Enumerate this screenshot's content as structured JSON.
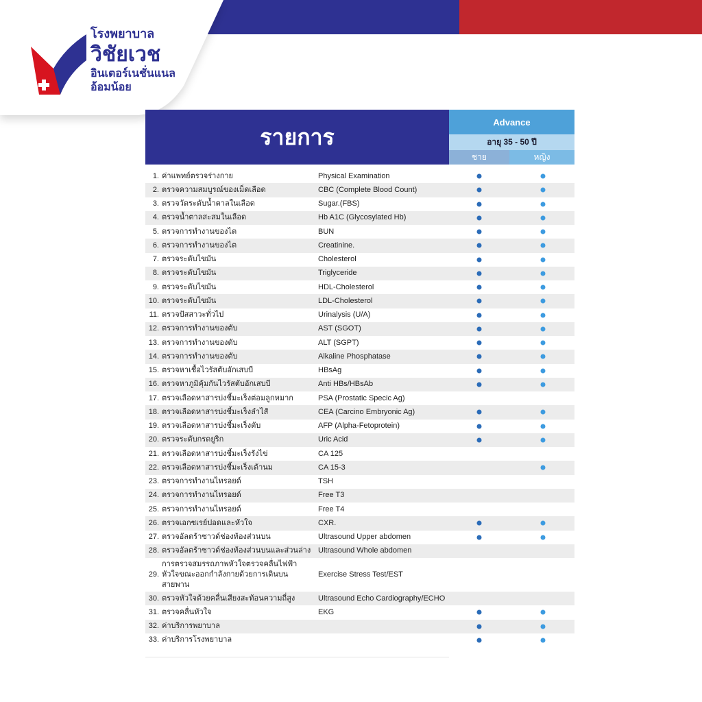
{
  "header": {
    "logo": {
      "line1": "โรงพยาบาล",
      "line2": "วิชัยเวช",
      "line3": "อินเตอร์เนชั่นแนล",
      "line4": "อ้อมน้อย"
    },
    "list_title": "รายการ",
    "package": "Advance",
    "age_range": "อายุ 35 - 50 ปี",
    "male": "ชาย",
    "female": "หญิง"
  },
  "colors": {
    "brand_blue": "#2e3192",
    "brand_red": "#c1272d",
    "dot_male": "#2b6cb8",
    "dot_female": "#3d9be0"
  },
  "rows": [
    {
      "n": "1.",
      "th": "ค่าแพทย์ตรวจร่างกาย",
      "en": "Physical Examination",
      "m": true,
      "f": true
    },
    {
      "n": "2.",
      "th": "ตรวจความสมบูรณ์ของเม็ดเลือด",
      "en": "CBC (Complete Blood Count)",
      "m": true,
      "f": true
    },
    {
      "n": "3.",
      "th": "ตรวจวัดระดับน้ำตาลในเลือด",
      "en": "Sugar.(FBS)",
      "m": true,
      "f": true
    },
    {
      "n": "4.",
      "th": "ตรวจน้ำตาลสะสมในเลือด",
      "en": "Hb A1C (Glycosylated Hb)",
      "m": true,
      "f": true
    },
    {
      "n": "5.",
      "th": "ตรวจการทำงานของไต",
      "en": "BUN",
      "m": true,
      "f": true
    },
    {
      "n": "6.",
      "th": "ตรวจการทำงานของไต",
      "en": "Creatinine.",
      "m": true,
      "f": true
    },
    {
      "n": "7.",
      "th": "ตรวจระดับไขมัน",
      "en": "Cholesterol",
      "m": true,
      "f": true
    },
    {
      "n": "8.",
      "th": "ตรวจระดับไขมัน",
      "en": "Triglyceride",
      "m": true,
      "f": true
    },
    {
      "n": "9.",
      "th": "ตรวจระดับไขมัน",
      "en": "HDL-Cholesterol",
      "m": true,
      "f": true
    },
    {
      "n": "10.",
      "th": "ตรวจระดับไขมัน",
      "en": "LDL-Cholesterol",
      "m": true,
      "f": true
    },
    {
      "n": "11.",
      "th": "ตรวจปัสสาวะทั่วไป",
      "en": "Urinalysis (U/A)",
      "m": true,
      "f": true
    },
    {
      "n": "12.",
      "th": "ตรวจการทำงานของตับ",
      "en": "AST (SGOT)",
      "m": true,
      "f": true
    },
    {
      "n": "13.",
      "th": "ตรวจการทำงานของตับ",
      "en": "ALT (SGPT)",
      "m": true,
      "f": true
    },
    {
      "n": "14.",
      "th": "ตรวจการทำงานของตับ",
      "en": "Alkaline Phosphatase",
      "m": true,
      "f": true
    },
    {
      "n": "15.",
      "th": "ตรวจหาเชื้อไวรัสตับอักเสบบี",
      "en": "HBsAg",
      "m": true,
      "f": true
    },
    {
      "n": "16.",
      "th": "ตรวจหาภูมิคุ้มกันไวรัสตับอักเสบบี",
      "en": "Anti HBs/HBsAb",
      "m": true,
      "f": true
    },
    {
      "n": "17.",
      "th": "ตรวจเลือดหาสารบ่งชี้มะเร็งต่อมลูกหมาก",
      "en": "PSA (Prostatic Specic Ag)",
      "m": false,
      "f": false
    },
    {
      "n": "18.",
      "th": "ตรวจเลือดหาสารบ่งชี้มะเร็งลำไส้",
      "en": "CEA (Carcino Embryonic Ag)",
      "m": true,
      "f": true
    },
    {
      "n": "19.",
      "th": "ตรวจเลือดหาสารบ่งชี้มะเร็งตับ",
      "en": "AFP (Alpha-Fetoprotein)",
      "m": true,
      "f": true
    },
    {
      "n": "20.",
      "th": "ตรวจระดับกรดยูริก",
      "en": "Uric Acid",
      "m": true,
      "f": true
    },
    {
      "n": "21.",
      "th": "ตรวจเลือดหาสารบ่งชี้มะเร็งรังไข่",
      "en": "CA 125",
      "m": false,
      "f": false
    },
    {
      "n": "22.",
      "th": "ตรวจเลือดหาสารบ่งชี้มะเร็งเต้านม",
      "en": "CA 15-3",
      "m": false,
      "f": true
    },
    {
      "n": "23.",
      "th": "ตรวจการทำงานไทรอยด์",
      "en": "TSH",
      "m": false,
      "f": false
    },
    {
      "n": "24.",
      "th": "ตรวจการทำงานไทรอยด์",
      "en": "Free T3",
      "m": false,
      "f": false
    },
    {
      "n": "25.",
      "th": "ตรวจการทำงานไทรอยด์",
      "en": "Free T4",
      "m": false,
      "f": false
    },
    {
      "n": "26.",
      "th": "ตรวจเอกซเรย์ปอดและหัวใจ",
      "en": "CXR.",
      "m": true,
      "f": true
    },
    {
      "n": "27.",
      "th": "ตรวจอัลตร้าซาวด์ช่องท้องส่วนบน",
      "en": "Ultrasound Upper abdomen",
      "m": true,
      "f": true
    },
    {
      "n": "28.",
      "th": "ตรวจอัลตร้าซาวด์ช่องท้องส่วนบนและส่วนล่าง",
      "en": "Ultrasound Whole abdomen",
      "m": false,
      "f": false
    },
    {
      "n": "29.",
      "th": "การตรวจสมรรถภาพหัวใจตรวจคลื่นไฟฟ้าหัวใจขณะออกกำลังกายด้วยการเดินบนสายพาน",
      "en": "Exercise Stress Test/EST",
      "m": false,
      "f": false,
      "tall": true
    },
    {
      "n": "30.",
      "th": "ตรวจหัวใจด้วยคลื่นเสียงสะท้อนความถี่สูง",
      "en": "Ultrasound Echo Cardiography/ECHO",
      "m": false,
      "f": false
    },
    {
      "n": "31.",
      "th": "ตรวจคลื่นหัวใจ",
      "en": "EKG",
      "m": true,
      "f": true
    },
    {
      "n": "32.",
      "th": "ค่าบริการพยาบาล",
      "en": "",
      "m": true,
      "f": true
    },
    {
      "n": "33.",
      "th": "ค่าบริการโรงพยาบาล",
      "en": "",
      "m": true,
      "f": true
    }
  ]
}
